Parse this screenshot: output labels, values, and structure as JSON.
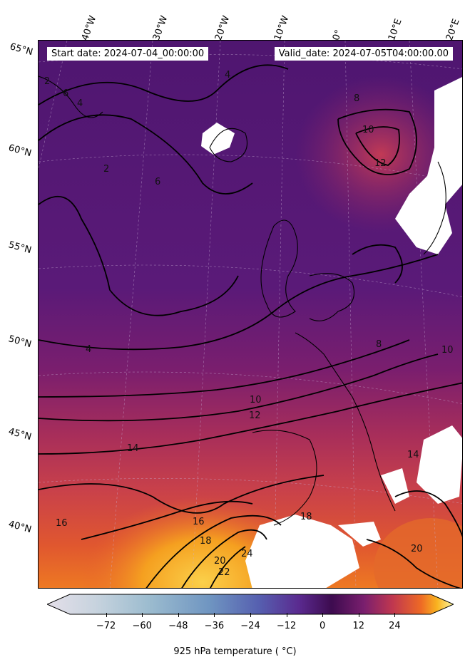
{
  "map": {
    "start_label": "Start date: 2024-07-04_00:00:00",
    "valid_label": "Valid_date: 2024-07-05T04:00:00.00",
    "variable": "925 hPa temperature",
    "units_label": "925 hPa temperature ($^\\circ$C)",
    "lon_labels": [
      "40°W",
      "30°W",
      "20°W",
      "10°W",
      "0°",
      "10°E",
      "20°E"
    ],
    "lat_labels": [
      "65°N",
      "60°N",
      "55°N",
      "50°N",
      "45°N",
      "40°N"
    ],
    "contour_labels": [
      "2",
      "4",
      "6",
      "8",
      "10",
      "12",
      "14",
      "16",
      "18",
      "20",
      "22",
      "24"
    ],
    "colors": {
      "cold": "#55177a",
      "mid": "#7b1d6e",
      "warm": "#c43c4e",
      "hot": "#e8632d",
      "hottest": "#f6a623",
      "missing": "#ffffff"
    }
  },
  "colorbar": {
    "label": "925 hPa temperature ( °C)",
    "ticks": [
      "−72",
      "−60",
      "−48",
      "−36",
      "−24",
      "−12",
      "0",
      "12",
      "24"
    ],
    "min": -84,
    "max": 36,
    "colormap": "inferno-like diverging (cold blue-grey to warm yellow)"
  }
}
